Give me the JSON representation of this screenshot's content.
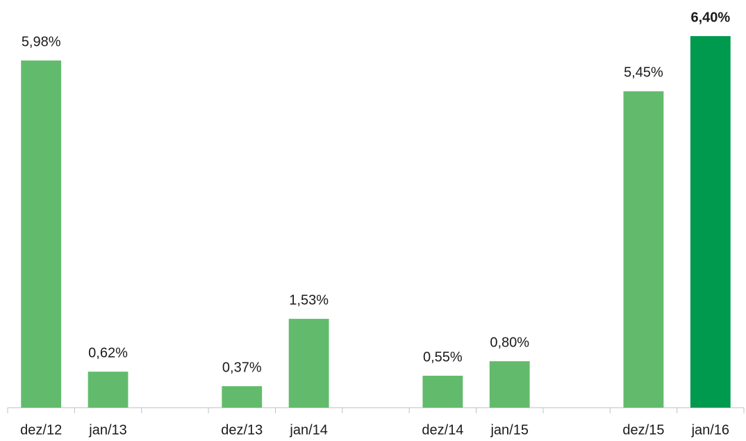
{
  "chart_data": {
    "type": "bar",
    "categories": [
      "dez/12",
      "jan/13",
      null,
      "dez/13",
      "jan/14",
      null,
      "dez/14",
      "jan/15",
      null,
      "dez/15",
      "jan/16"
    ],
    "values": [
      5.98,
      0.62,
      null,
      0.37,
      1.53,
      null,
      0.55,
      0.8,
      null,
      5.45,
      6.4
    ],
    "value_labels": [
      "5,98%",
      "0,62%",
      null,
      "0,37%",
      "1,53%",
      null,
      "0,55%",
      "0,80%",
      null,
      "5,45%",
      "6,40%"
    ],
    "colors": [
      "#62bb6d",
      "#62bb6d",
      null,
      "#62bb6d",
      "#62bb6d",
      null,
      "#62bb6d",
      "#62bb6d",
      null,
      "#62bb6d",
      "#009a4e"
    ],
    "highlight": 10
  }
}
